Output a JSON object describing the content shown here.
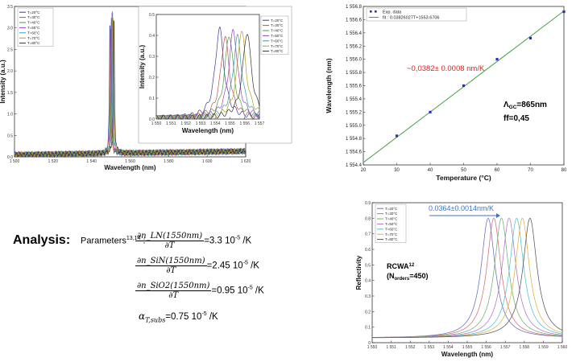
{
  "chart_data": [
    {
      "type": "line",
      "xlabel": "Wavelength (nm)",
      "ylabel": "Intensity (a.u.)",
      "xlim": [
        1500,
        1630
      ],
      "ylim": [
        0,
        3.6
      ],
      "x_ticks": [
        "1 500",
        "1 520",
        "1 540",
        "1 560",
        "1 580",
        "1 600",
        "1 620"
      ],
      "y_ticks": [
        "0.0",
        "0.5",
        "1.0",
        "1.5",
        "2.0",
        "2.5",
        "3.0",
        "3.5"
      ],
      "legend": [
        "T=20°C",
        "T=30°C",
        "T=40°C",
        "T=50°C",
        "T=60°C",
        "T=70°C",
        "T=80°C"
      ],
      "legend_position": "top-left",
      "series": [
        {
          "name": "T=20°C",
          "color": "#3a3aa8",
          "peak_x": 1553.7,
          "peak_y": 3.3
        },
        {
          "name": "T=30°C",
          "color": "#c05050",
          "peak_x": 1554.0,
          "peak_y": 3.0
        },
        {
          "name": "T=40°C",
          "color": "#4a9a4a",
          "peak_x": 1554.4,
          "peak_y": 3.2
        },
        {
          "name": "T=50°C",
          "color": "#a040c0",
          "peak_x": 1554.8,
          "peak_y": 3.4
        },
        {
          "name": "T=60°C",
          "color": "#30a0b0",
          "peak_x": 1555.1,
          "peak_y": 3.6
        },
        {
          "name": "T=70°C",
          "color": "#c09a20",
          "peak_x": 1555.5,
          "peak_y": 3.5
        },
        {
          "name": "T=80°C",
          "color": "#333333",
          "peak_x": 1555.9,
          "peak_y": 3.4
        }
      ]
    },
    {
      "type": "line",
      "xlabel": "Wavelength (nm)",
      "ylabel": "Intensity (a.u.)",
      "xlim": [
        1550,
        1557.5
      ],
      "ylim": [
        0,
        0.5
      ],
      "x_ticks": [
        "1 550",
        "1 551",
        "1 552",
        "1 553",
        "1 554",
        "1 555",
        "1 556",
        "1 557"
      ],
      "y_ticks": [
        "0.0",
        "0.1",
        "0.2",
        "0.3",
        "0.4",
        "0.5"
      ],
      "legend": [
        "T=20°C",
        "T=30°C",
        "T=40°C",
        "T=50°C",
        "T=60°C",
        "T=70°C",
        "T=80°C"
      ],
      "legend_position": "top-right",
      "series": [
        {
          "name": "T=20°C",
          "color": "#3a3aa8",
          "peak_x": 1554.6,
          "peak_y": 0.43
        },
        {
          "name": "T=30°C",
          "color": "#c05050",
          "peak_x": 1555.0,
          "peak_y": 0.39
        },
        {
          "name": "T=40°C",
          "color": "#4a9a4a",
          "peak_x": 1555.3,
          "peak_y": 0.4
        },
        {
          "name": "T=50°C",
          "color": "#a040c0",
          "peak_x": 1555.6,
          "peak_y": 0.42
        },
        {
          "name": "T=60°C",
          "color": "#30a0b0",
          "peak_x": 1555.9,
          "peak_y": 0.39
        },
        {
          "name": "T=70°C",
          "color": "#c09a20",
          "peak_x": 1556.2,
          "peak_y": 0.42
        },
        {
          "name": "T=80°C",
          "color": "#333333",
          "peak_x": 1556.6,
          "peak_y": 0.41
        }
      ]
    },
    {
      "type": "scatter",
      "xlabel": "Temperature (°C)",
      "ylabel": "Wavelength (nm)",
      "xlim": [
        20,
        80
      ],
      "ylim": [
        1554.4,
        1556.8
      ],
      "x_ticks": [
        "20",
        "30",
        "40",
        "50",
        "60",
        "70",
        "80"
      ],
      "y_ticks": [
        "1 554.4",
        "1 554.6",
        "1 554.8",
        "1 555.0",
        "1 555.2",
        "1 555.4",
        "1 555.6",
        "1 555.8",
        "1 556.0",
        "1 556.2",
        "1 556.4",
        "1 556.6",
        "1 556.8"
      ],
      "legend": [
        "Exp. data",
        "fit : 0.03826027T+1553.6706"
      ],
      "legend_position": "top-left",
      "points": {
        "x": [
          30,
          40,
          50,
          60,
          70,
          80
        ],
        "y": [
          1554.84,
          1555.2,
          1555.6,
          1556.0,
          1556.32,
          1556.72
        ]
      },
      "fit": {
        "slope": 0.03826027,
        "intercept": 1553.6706
      },
      "annotation": "~0,0382± 0.0008 nm/K",
      "note_line1": "865nm",
      "note_line1_symbol": "Λ",
      "note_line1_sub": "GC",
      "note_line2": "ff=0,45"
    },
    {
      "type": "line",
      "xlabel": "Wavelength (nm)",
      "ylabel": "Reflectivity",
      "xlim": [
        1550,
        1560
      ],
      "ylim": [
        0,
        0.9
      ],
      "x_ticks": [
        "1 550",
        "1 551",
        "1 552",
        "1 553",
        "1 554",
        "1 555",
        "1 556",
        "1 557",
        "1 558",
        "1 559",
        "1 560"
      ],
      "y_ticks": [
        "0",
        "0.1",
        "0.2",
        "0.3",
        "0.4",
        "0.5",
        "0.6",
        "0.7",
        "0.8",
        "0.9"
      ],
      "legend": [
        "T=20°C",
        "T=30°C",
        "T=40°C",
        "T=50°C",
        "T=60°C",
        "T=70°C",
        "T=80°C"
      ],
      "legend_position": "top-left",
      "annotation": "0.0364±0.0014nm/K",
      "label_line1": "RCWA",
      "label_line1_sup": "12",
      "label_line2_pre": "(N",
      "label_line2_sub": "orders",
      "label_line2_post": "=450)",
      "series": [
        {
          "name": "T=20°C",
          "color": "#6a6ac8",
          "peak_x": 1556.1,
          "peak_y": 0.8
        },
        {
          "name": "T=30°C",
          "color": "#d07070",
          "peak_x": 1556.4,
          "peak_y": 0.8
        },
        {
          "name": "T=40°C",
          "color": "#70b070",
          "peak_x": 1556.8,
          "peak_y": 0.8
        },
        {
          "name": "T=50°C",
          "color": "#b070d0",
          "peak_x": 1557.2,
          "peak_y": 0.8
        },
        {
          "name": "T=60°C",
          "color": "#50c0d0",
          "peak_x": 1557.6,
          "peak_y": 0.8
        },
        {
          "name": "T=70°C",
          "color": "#e0b040",
          "peak_x": 1557.9,
          "peak_y": 0.8
        },
        {
          "name": "T=80°C",
          "color": "#555555",
          "peak_x": 1558.3,
          "peak_y": 0.8
        }
      ]
    }
  ],
  "analysis": {
    "title": "Analysis:",
    "params_label": "Parameters",
    "params_sup": "13,14",
    "params_colon": " :",
    "rows": [
      {
        "numerator": "∂n_LN(1550nm)",
        "denominator": "∂T",
        "value": "=3.3 10",
        "exp": "-5",
        "unit": " /K"
      },
      {
        "numerator": "∂n_SiN(1550nm)",
        "denominator": "∂T",
        "value": "=2.45 10",
        "exp": "-5",
        "unit": " /K"
      },
      {
        "numerator": "∂n_SiO2(1550nm)",
        "denominator": "∂T",
        "value": "=0.95 10",
        "exp": "-5",
        "unit": " /K"
      }
    ],
    "alpha_symbol": "α",
    "alpha_sub": "T,subs",
    "alpha_value": "=0.75 10",
    "alpha_exp": "-5",
    "alpha_unit": " /K"
  }
}
